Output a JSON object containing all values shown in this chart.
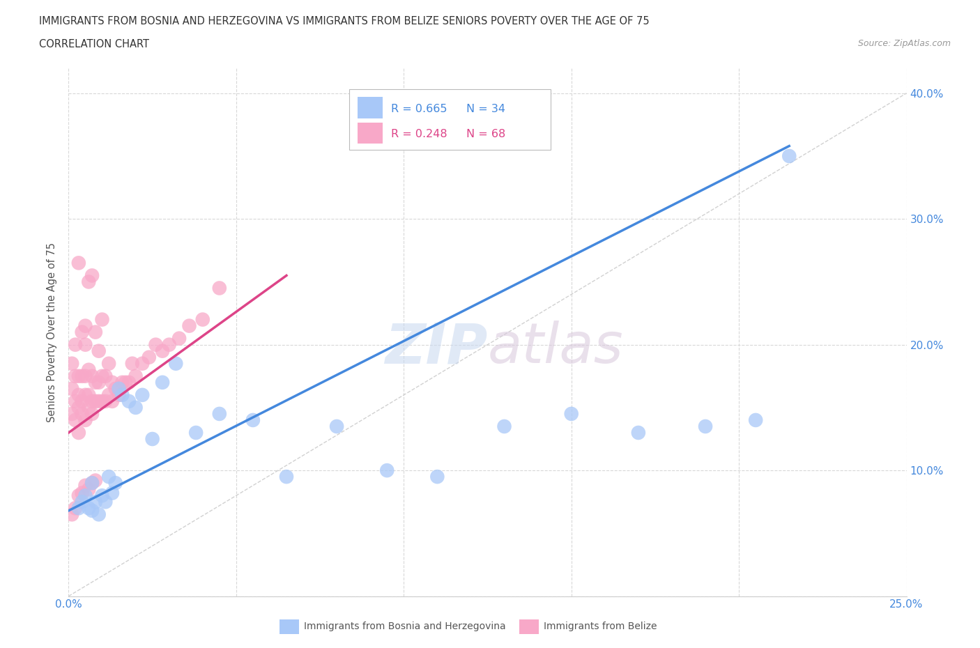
{
  "title_line1": "IMMIGRANTS FROM BOSNIA AND HERZEGOVINA VS IMMIGRANTS FROM BELIZE SENIORS POVERTY OVER THE AGE OF 75",
  "title_line2": "CORRELATION CHART",
  "source_text": "Source: ZipAtlas.com",
  "ylabel": "Seniors Poverty Over the Age of 75",
  "xlim": [
    0.0,
    0.25
  ],
  "ylim": [
    0.0,
    0.42
  ],
  "color_blue": "#a8c8f8",
  "color_pink": "#f8a8c8",
  "color_blue_line": "#4488dd",
  "color_pink_line": "#dd4488",
  "grid_color": "#d8d8d8",
  "scatter_blue_x": [
    0.003,
    0.004,
    0.005,
    0.006,
    0.007,
    0.007,
    0.008,
    0.009,
    0.01,
    0.011,
    0.012,
    0.013,
    0.014,
    0.015,
    0.016,
    0.018,
    0.02,
    0.022,
    0.025,
    0.028,
    0.032,
    0.038,
    0.045,
    0.055,
    0.065,
    0.08,
    0.095,
    0.11,
    0.13,
    0.15,
    0.17,
    0.19,
    0.205,
    0.215
  ],
  "scatter_blue_y": [
    0.07,
    0.075,
    0.08,
    0.07,
    0.068,
    0.09,
    0.075,
    0.065,
    0.08,
    0.075,
    0.095,
    0.082,
    0.09,
    0.165,
    0.16,
    0.155,
    0.15,
    0.16,
    0.125,
    0.17,
    0.185,
    0.13,
    0.145,
    0.14,
    0.095,
    0.135,
    0.1,
    0.095,
    0.135,
    0.145,
    0.13,
    0.135,
    0.14,
    0.35
  ],
  "scatter_pink_x": [
    0.001,
    0.001,
    0.001,
    0.002,
    0.002,
    0.002,
    0.002,
    0.003,
    0.003,
    0.003,
    0.003,
    0.003,
    0.004,
    0.004,
    0.004,
    0.004,
    0.005,
    0.005,
    0.005,
    0.005,
    0.005,
    0.006,
    0.006,
    0.006,
    0.006,
    0.007,
    0.007,
    0.007,
    0.007,
    0.008,
    0.008,
    0.008,
    0.009,
    0.009,
    0.009,
    0.01,
    0.01,
    0.01,
    0.011,
    0.011,
    0.012,
    0.012,
    0.013,
    0.013,
    0.014,
    0.015,
    0.016,
    0.017,
    0.018,
    0.019,
    0.02,
    0.022,
    0.024,
    0.026,
    0.028,
    0.03,
    0.033,
    0.036,
    0.04,
    0.045,
    0.001,
    0.002,
    0.003,
    0.004,
    0.005,
    0.006,
    0.007,
    0.008
  ],
  "scatter_pink_y": [
    0.145,
    0.165,
    0.185,
    0.14,
    0.155,
    0.175,
    0.2,
    0.13,
    0.15,
    0.16,
    0.175,
    0.265,
    0.145,
    0.155,
    0.175,
    0.21,
    0.14,
    0.16,
    0.175,
    0.2,
    0.215,
    0.15,
    0.16,
    0.18,
    0.25,
    0.145,
    0.155,
    0.175,
    0.255,
    0.155,
    0.17,
    0.21,
    0.155,
    0.17,
    0.195,
    0.155,
    0.175,
    0.22,
    0.155,
    0.175,
    0.16,
    0.185,
    0.155,
    0.17,
    0.165,
    0.16,
    0.17,
    0.17,
    0.17,
    0.185,
    0.175,
    0.185,
    0.19,
    0.2,
    0.195,
    0.2,
    0.205,
    0.215,
    0.22,
    0.245,
    0.065,
    0.07,
    0.08,
    0.082,
    0.088,
    0.085,
    0.09,
    0.092
  ],
  "blue_line_x": [
    0.0,
    0.215
  ],
  "blue_line_y": [
    0.068,
    0.358
  ],
  "pink_line_x": [
    0.0,
    0.065
  ],
  "pink_line_y": [
    0.13,
    0.255
  ]
}
